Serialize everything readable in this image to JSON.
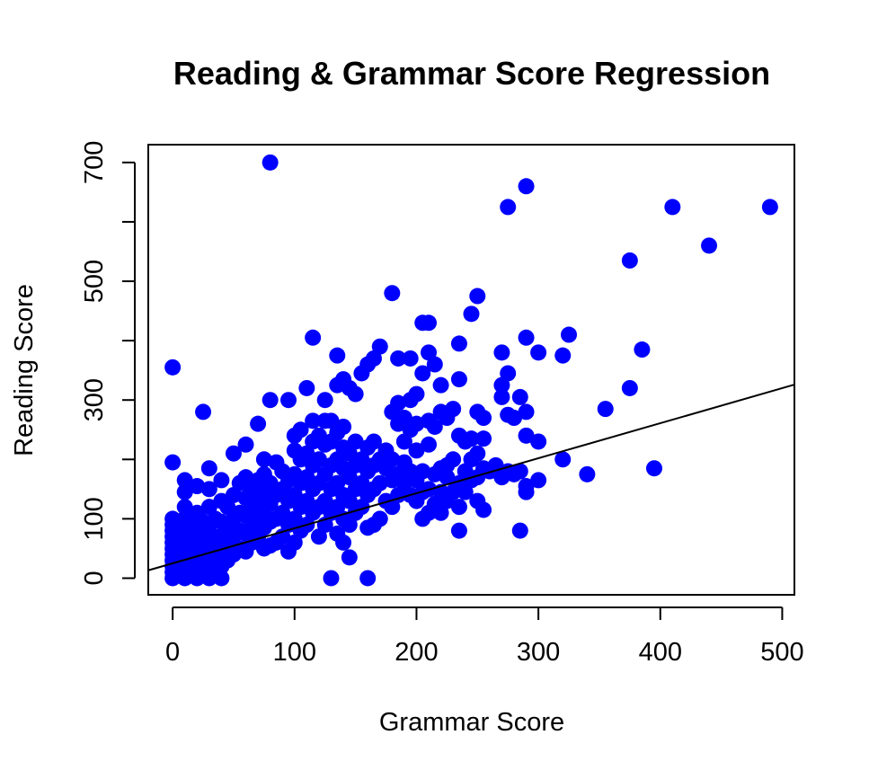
{
  "chart_data": {
    "type": "scatter",
    "title": "Reading & Grammar Score Regression",
    "xlabel": "Grammar Score",
    "ylabel": "Reading Score",
    "xlim": [
      -20,
      510
    ],
    "ylim": [
      -28,
      730
    ],
    "xticks": [
      0,
      100,
      200,
      300,
      400,
      500
    ],
    "yticks": [
      0,
      100,
      200,
      300,
      400,
      500,
      600,
      700
    ],
    "ytick_labels": [
      "0",
      "100",
      "",
      "300",
      "",
      "500",
      "",
      "700"
    ],
    "grid": false,
    "point_color": "#0000ff",
    "line_color": "#000000",
    "regression_line": {
      "intercept": 25,
      "slope": 0.59
    },
    "series": [
      {
        "points": [
          [
            0,
            0
          ],
          [
            0,
            10
          ],
          [
            0,
            20
          ],
          [
            0,
            30
          ],
          [
            0,
            40
          ],
          [
            0,
            50
          ],
          [
            0,
            60
          ],
          [
            0,
            70
          ],
          [
            0,
            80
          ],
          [
            0,
            90
          ],
          [
            0,
            100
          ],
          [
            0,
            195
          ],
          [
            0,
            355
          ],
          [
            5,
            5
          ],
          [
            5,
            25
          ],
          [
            5,
            45
          ],
          [
            5,
            65
          ],
          [
            5,
            85
          ],
          [
            10,
            0
          ],
          [
            10,
            20
          ],
          [
            10,
            40
          ],
          [
            10,
            60
          ],
          [
            10,
            80
          ],
          [
            10,
            100
          ],
          [
            10,
            120
          ],
          [
            10,
            145
          ],
          [
            10,
            165
          ],
          [
            15,
            10
          ],
          [
            15,
            30
          ],
          [
            15,
            50
          ],
          [
            15,
            70
          ],
          [
            15,
            90
          ],
          [
            20,
            0
          ],
          [
            20,
            20
          ],
          [
            20,
            40
          ],
          [
            20,
            60
          ],
          [
            20,
            80
          ],
          [
            20,
            110
          ],
          [
            20,
            155
          ],
          [
            25,
            15
          ],
          [
            25,
            35
          ],
          [
            25,
            55
          ],
          [
            25,
            75
          ],
          [
            25,
            95
          ],
          [
            25,
            280
          ],
          [
            30,
            0
          ],
          [
            30,
            20
          ],
          [
            30,
            40
          ],
          [
            30,
            60
          ],
          [
            30,
            90
          ],
          [
            30,
            120
          ],
          [
            30,
            150
          ],
          [
            30,
            185
          ],
          [
            35,
            10
          ],
          [
            35,
            30
          ],
          [
            35,
            50
          ],
          [
            35,
            70
          ],
          [
            35,
            100
          ],
          [
            40,
            0
          ],
          [
            40,
            20
          ],
          [
            40,
            45
          ],
          [
            40,
            70
          ],
          [
            40,
            95
          ],
          [
            40,
            130
          ],
          [
            40,
            165
          ],
          [
            45,
            30
          ],
          [
            45,
            60
          ],
          [
            45,
            90
          ],
          [
            45,
            120
          ],
          [
            50,
            40
          ],
          [
            50,
            70
          ],
          [
            50,
            100
          ],
          [
            50,
            140
          ],
          [
            50,
            210
          ],
          [
            55,
            50
          ],
          [
            55,
            80
          ],
          [
            55,
            110
          ],
          [
            55,
            160
          ],
          [
            60,
            45
          ],
          [
            60,
            75
          ],
          [
            60,
            105
          ],
          [
            60,
            135
          ],
          [
            60,
            170
          ],
          [
            60,
            225
          ],
          [
            65,
            60
          ],
          [
            65,
            90
          ],
          [
            65,
            120
          ],
          [
            65,
            150
          ],
          [
            70,
            70
          ],
          [
            70,
            100
          ],
          [
            70,
            130
          ],
          [
            70,
            165
          ],
          [
            70,
            260
          ],
          [
            75,
            50
          ],
          [
            75,
            85
          ],
          [
            75,
            115
          ],
          [
            75,
            145
          ],
          [
            75,
            175
          ],
          [
            75,
            200
          ],
          [
            80,
            55
          ],
          [
            80,
            95
          ],
          [
            80,
            125
          ],
          [
            80,
            160
          ],
          [
            80,
            300
          ],
          [
            80,
            700
          ],
          [
            85,
            60
          ],
          [
            85,
            100
          ],
          [
            85,
            140
          ],
          [
            85,
            195
          ],
          [
            90,
            70
          ],
          [
            90,
            110
          ],
          [
            90,
            150
          ],
          [
            90,
            180
          ],
          [
            95,
            45
          ],
          [
            95,
            90
          ],
          [
            95,
            130
          ],
          [
            95,
            165
          ],
          [
            95,
            300
          ],
          [
            100,
            60
          ],
          [
            100,
            100
          ],
          [
            100,
            140
          ],
          [
            100,
            175
          ],
          [
            100,
            215
          ],
          [
            100,
            240
          ],
          [
            105,
            80
          ],
          [
            105,
            120
          ],
          [
            105,
            160
          ],
          [
            105,
            200
          ],
          [
            105,
            250
          ],
          [
            110,
            90
          ],
          [
            110,
            130
          ],
          [
            110,
            170
          ],
          [
            110,
            210
          ],
          [
            110,
            320
          ],
          [
            115,
            110
          ],
          [
            115,
            150
          ],
          [
            115,
            190
          ],
          [
            115,
            230
          ],
          [
            115,
            265
          ],
          [
            115,
            405
          ],
          [
            120,
            70
          ],
          [
            120,
            120
          ],
          [
            120,
            160
          ],
          [
            120,
            200
          ],
          [
            120,
            240
          ],
          [
            125,
            90
          ],
          [
            125,
            130
          ],
          [
            125,
            175
          ],
          [
            125,
            225
          ],
          [
            125,
            265
          ],
          [
            125,
            300
          ],
          [
            130,
            0
          ],
          [
            130,
            110
          ],
          [
            130,
            150
          ],
          [
            130,
            190
          ],
          [
            130,
            230
          ],
          [
            130,
            265
          ],
          [
            135,
            75
          ],
          [
            135,
            120
          ],
          [
            135,
            160
          ],
          [
            135,
            200
          ],
          [
            135,
            245
          ],
          [
            135,
            325
          ],
          [
            135,
            375
          ],
          [
            140,
            60
          ],
          [
            140,
            100
          ],
          [
            140,
            140
          ],
          [
            140,
            185
          ],
          [
            140,
            220
          ],
          [
            140,
            255
          ],
          [
            140,
            335
          ],
          [
            145,
            35
          ],
          [
            145,
            90
          ],
          [
            145,
            130
          ],
          [
            145,
            170
          ],
          [
            145,
            210
          ],
          [
            145,
            320
          ],
          [
            150,
            110
          ],
          [
            150,
            150
          ],
          [
            150,
            190
          ],
          [
            150,
            230
          ],
          [
            150,
            310
          ],
          [
            155,
            120
          ],
          [
            155,
            160
          ],
          [
            155,
            200
          ],
          [
            155,
            345
          ],
          [
            160,
            0
          ],
          [
            160,
            85
          ],
          [
            160,
            140
          ],
          [
            160,
            180
          ],
          [
            160,
            220
          ],
          [
            160,
            360
          ],
          [
            165,
            90
          ],
          [
            165,
            150
          ],
          [
            165,
            190
          ],
          [
            165,
            230
          ],
          [
            165,
            370
          ],
          [
            170,
            100
          ],
          [
            170,
            160
          ],
          [
            170,
            200
          ],
          [
            170,
            390
          ],
          [
            175,
            130
          ],
          [
            175,
            185
          ],
          [
            175,
            215
          ],
          [
            180,
            120
          ],
          [
            180,
            165
          ],
          [
            180,
            200
          ],
          [
            180,
            280
          ],
          [
            180,
            480
          ],
          [
            185,
            140
          ],
          [
            185,
            175
          ],
          [
            185,
            260
          ],
          [
            185,
            295
          ],
          [
            185,
            370
          ],
          [
            190,
            160
          ],
          [
            190,
            195
          ],
          [
            190,
            230
          ],
          [
            190,
            270
          ],
          [
            195,
            140
          ],
          [
            195,
            180
          ],
          [
            195,
            250
          ],
          [
            195,
            300
          ],
          [
            195,
            370
          ],
          [
            200,
            130
          ],
          [
            200,
            165
          ],
          [
            200,
            215
          ],
          [
            200,
            260
          ],
          [
            200,
            310
          ],
          [
            205,
            100
          ],
          [
            205,
            145
          ],
          [
            205,
            180
          ],
          [
            205,
            345
          ],
          [
            205,
            430
          ],
          [
            210,
            110
          ],
          [
            210,
            150
          ],
          [
            210,
            225
          ],
          [
            210,
            265
          ],
          [
            210,
            380
          ],
          [
            210,
            430
          ],
          [
            215,
            125
          ],
          [
            215,
            175
          ],
          [
            215,
            255
          ],
          [
            215,
            360
          ],
          [
            220,
            110
          ],
          [
            220,
            145
          ],
          [
            220,
            185
          ],
          [
            220,
            280
          ],
          [
            220,
            325
          ],
          [
            225,
            130
          ],
          [
            225,
            170
          ],
          [
            225,
            190
          ],
          [
            225,
            270
          ],
          [
            230,
            145
          ],
          [
            230,
            200
          ],
          [
            230,
            285
          ],
          [
            235,
            80
          ],
          [
            235,
            120
          ],
          [
            235,
            160
          ],
          [
            235,
            240
          ],
          [
            235,
            335
          ],
          [
            235,
            395
          ],
          [
            240,
            145
          ],
          [
            240,
            180
          ],
          [
            240,
            230
          ],
          [
            245,
            165
          ],
          [
            245,
            200
          ],
          [
            245,
            235
          ],
          [
            245,
            445
          ],
          [
            250,
            130
          ],
          [
            250,
            170
          ],
          [
            250,
            210
          ],
          [
            250,
            280
          ],
          [
            250,
            475
          ],
          [
            255,
            115
          ],
          [
            255,
            185
          ],
          [
            255,
            235
          ],
          [
            255,
            270
          ],
          [
            260,
            180
          ],
          [
            265,
            190
          ],
          [
            270,
            170
          ],
          [
            270,
            305
          ],
          [
            270,
            325
          ],
          [
            270,
            380
          ],
          [
            275,
            180
          ],
          [
            275,
            275
          ],
          [
            275,
            345
          ],
          [
            275,
            625
          ],
          [
            280,
            175
          ],
          [
            280,
            270
          ],
          [
            285,
            80
          ],
          [
            285,
            180
          ],
          [
            285,
            305
          ],
          [
            290,
            145
          ],
          [
            290,
            155
          ],
          [
            290,
            240
          ],
          [
            290,
            280
          ],
          [
            290,
            405
          ],
          [
            290,
            660
          ],
          [
            300,
            165
          ],
          [
            300,
            230
          ],
          [
            300,
            380
          ],
          [
            320,
            200
          ],
          [
            320,
            375
          ],
          [
            325,
            410
          ],
          [
            340,
            175
          ],
          [
            355,
            285
          ],
          [
            375,
            320
          ],
          [
            375,
            535
          ],
          [
            385,
            385
          ],
          [
            395,
            185
          ],
          [
            410,
            625
          ],
          [
            440,
            560
          ],
          [
            490,
            625
          ]
        ]
      }
    ]
  }
}
